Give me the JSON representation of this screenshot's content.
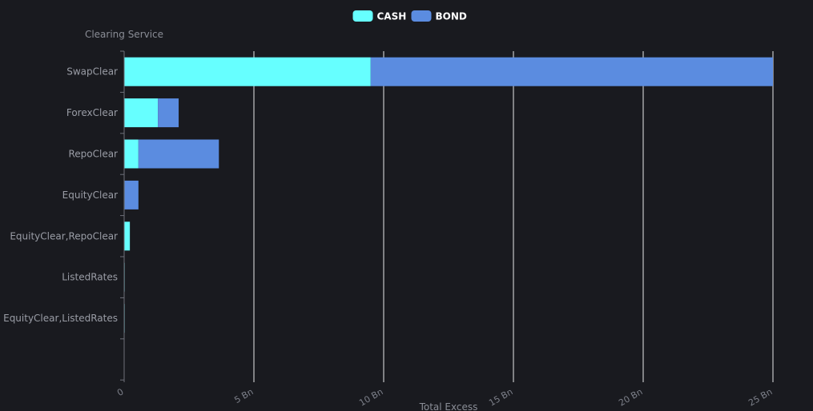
{
  "chart_data": {
    "type": "bar",
    "orientation": "horizontal",
    "stacked": true,
    "yaxis_name": "Clearing Service",
    "xaxis_name": "Total Excess",
    "categories": [
      "SwapClear",
      "ForexClear",
      "RepoClear",
      "EquityClear",
      "EquityClear,RepoClear",
      "ListedRates",
      "EquityClear,ListedRates"
    ],
    "series": [
      {
        "name": "CASH",
        "color": "#66ffff",
        "values": [
          9.5,
          1.3,
          0.55,
          0.02,
          0.22,
          0.02,
          0.02
        ]
      },
      {
        "name": "BOND",
        "color": "#5b8ce0",
        "values": [
          15.5,
          0.8,
          3.1,
          0.53,
          0.0,
          0.0,
          0.0
        ]
      }
    ],
    "xlim": [
      0,
      25
    ],
    "x_ticks": [
      0,
      5,
      10,
      15,
      20,
      25
    ],
    "x_tick_labels": [
      "0",
      "5 Bn",
      "10 Bn",
      "15 Bn",
      "20 Bn",
      "25 Bn"
    ],
    "grid": true,
    "legend_position": "top-center"
  }
}
